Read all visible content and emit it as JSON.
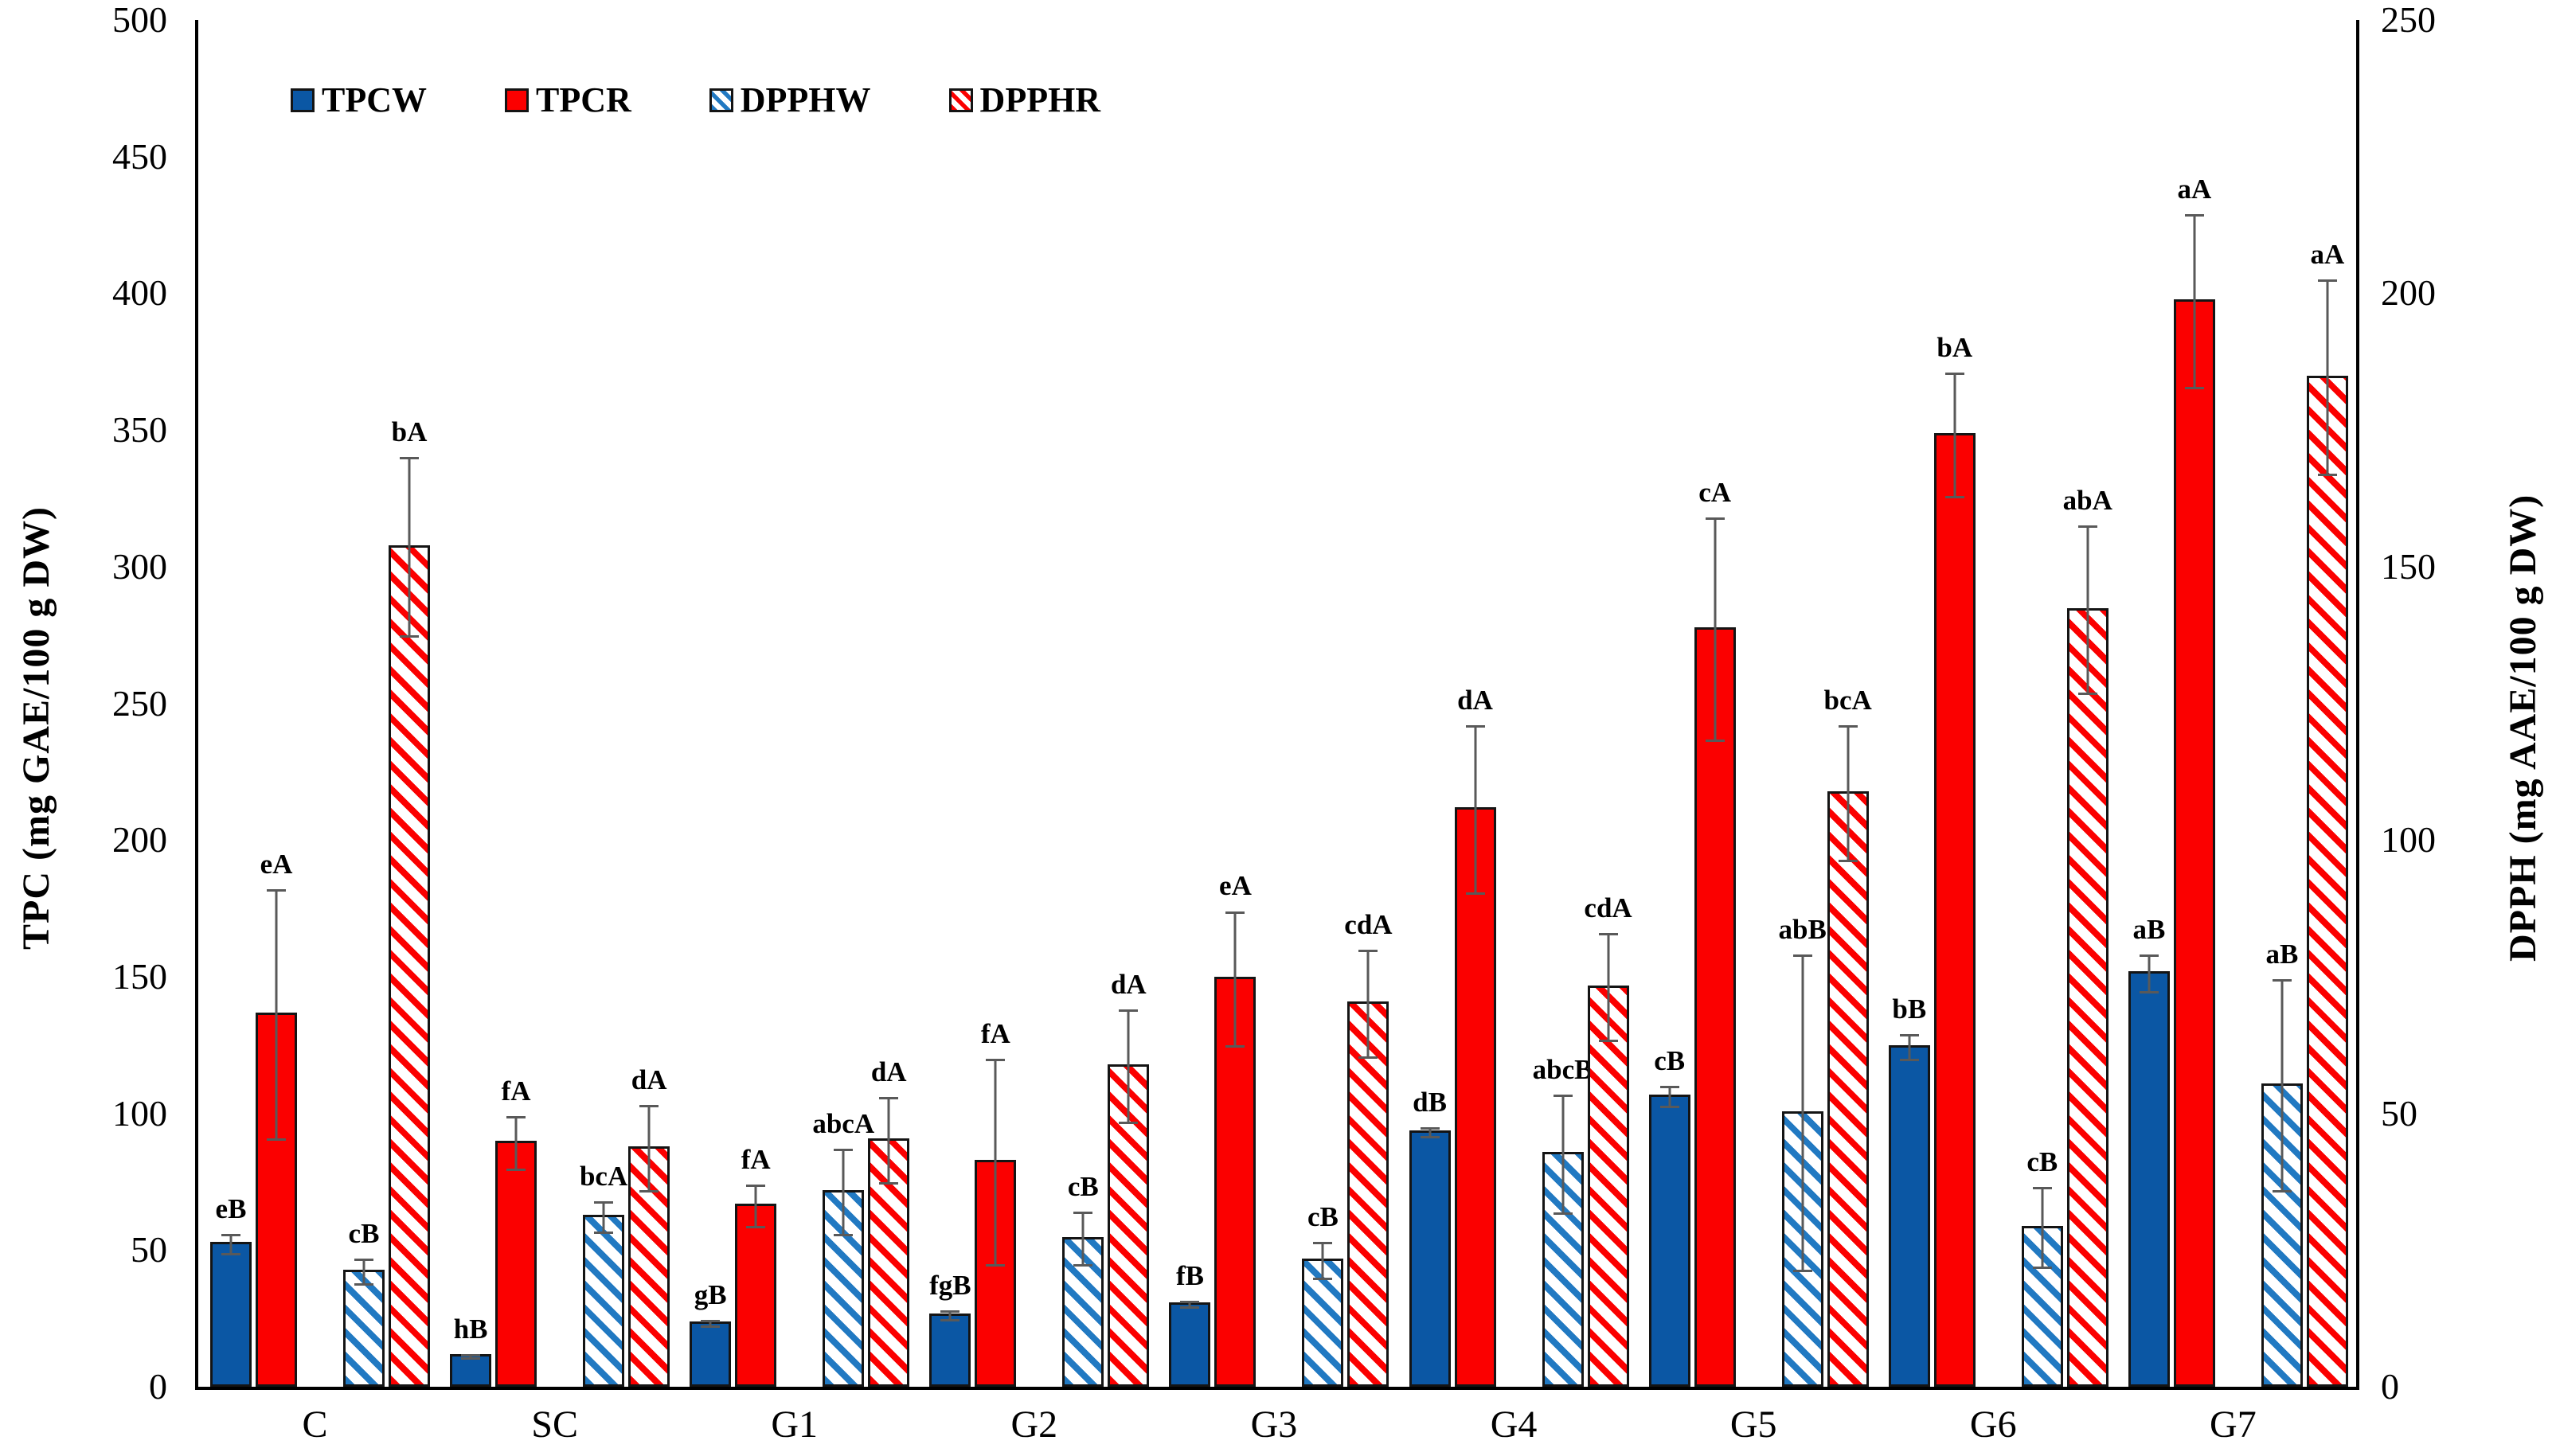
{
  "chart_data": {
    "type": "bar",
    "title": "",
    "categories": [
      "C",
      "SC",
      "G1",
      "G2",
      "G3",
      "G4",
      "G5",
      "G6",
      "G7"
    ],
    "left_axis": {
      "label": "TPC (mg GAE/100 g DW)",
      "min": 0,
      "max": 500,
      "step": 50,
      "ticks": [
        0,
        50,
        100,
        150,
        200,
        250,
        300,
        350,
        400,
        450,
        500
      ]
    },
    "right_axis": {
      "label": "DPPH (mg AAE/100 g DW)",
      "min": 0,
      "max": 250,
      "step": 50,
      "ticks": [
        0,
        50,
        100,
        150,
        200,
        250
      ]
    },
    "grid": "off",
    "legend_position": "top-left",
    "error_bar_color": "#595959",
    "bar_outline_color": "#141414",
    "series": [
      {
        "name": "TPCW",
        "axis": "left",
        "style": "solid",
        "color": "#0B57A4",
        "values": [
          52,
          11,
          23,
          26,
          30,
          93,
          106,
          124,
          151
        ],
        "errors": [
          4,
          1,
          1.5,
          2,
          1.5,
          2,
          4,
          5,
          7
        ],
        "annotations": [
          "eB",
          "hB",
          "gB",
          "fgB",
          "fB",
          "dB",
          "cB",
          "bB",
          "aB"
        ]
      },
      {
        "name": "TPCR",
        "axis": "left",
        "style": "solid",
        "color": "#FB0000",
        "values": [
          136,
          89,
          66,
          82,
          149,
          211,
          277,
          348,
          397
        ],
        "errors": [
          46,
          10,
          8,
          38,
          25,
          31,
          41,
          23,
          32
        ],
        "annotations": [
          "eA",
          "fA",
          "fA",
          "fA",
          "eA",
          "dA",
          "cA",
          "bA",
          "aA"
        ]
      },
      {
        "name": "DPPHW",
        "axis": "right",
        "style": "hatched",
        "color": "#2179C2",
        "values": [
          21,
          31,
          35.5,
          27,
          23,
          42.5,
          50,
          29,
          55
        ],
        "errors": [
          2.5,
          3,
          8,
          5,
          3.5,
          11,
          29,
          7.5,
          19.5
        ],
        "annotations": [
          "cB",
          "bcA",
          "abcA",
          "cB",
          "cB",
          "abcB",
          "abB",
          "cB",
          "aB"
        ]
      },
      {
        "name": "DPPHR",
        "axis": "right",
        "style": "hatched",
        "color": "#FB0000",
        "values": [
          153.5,
          43.5,
          45,
          58.5,
          70,
          73,
          108.5,
          142,
          184.5
        ],
        "errors": [
          16.5,
          8,
          8,
          10.5,
          10,
          10,
          12.5,
          15.5,
          18
        ],
        "annotations": [
          "bA",
          "dA",
          "dA",
          "dA",
          "cdA",
          "cdA",
          "bcA",
          "abA",
          "aA"
        ]
      }
    ]
  }
}
